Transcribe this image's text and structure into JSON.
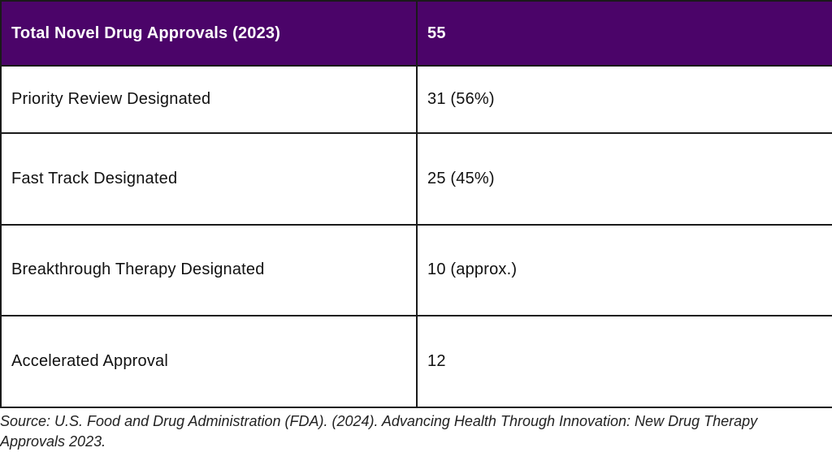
{
  "table": {
    "header": {
      "label": "Total Novel Drug Approvals (2023)",
      "value": "55"
    },
    "rows": [
      {
        "label": "Priority Review Designated",
        "value": "31 (56%)"
      },
      {
        "label": "Fast Track Designated",
        "value": "25 (45%)"
      },
      {
        "label": "Breakthrough Therapy Designated",
        "value": "10 (approx.)"
      },
      {
        "label": "Accelerated Approval",
        "value": "12"
      }
    ]
  },
  "source": "Source: U.S. Food and Drug Administration (FDA). (2024). Advancing Health Through Innovation: New Drug Therapy Approvals 2023.",
  "colors": {
    "header_background": "#4b0469",
    "header_text": "#ffffff",
    "border": "#1a1a1a"
  }
}
